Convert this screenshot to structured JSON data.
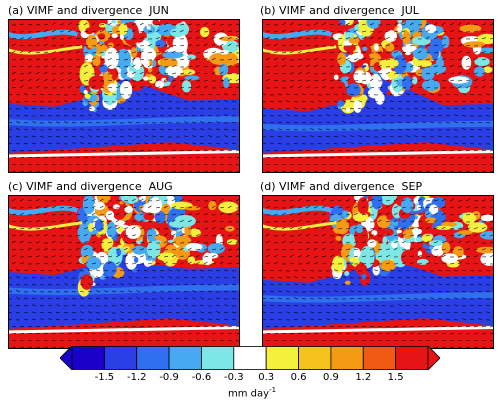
{
  "panels": [
    {
      "title": "(a) VIMF and divergence  JUN"
    },
    {
      "title": "(b) VIMF and divergence  JUL"
    },
    {
      "title": "(c) VIMF and divergence  AUG"
    },
    {
      "title": "(d) VIMF and divergence  SEP"
    }
  ],
  "colorbar": {
    "colors": [
      "#1a00c8",
      "#2a3ee6",
      "#2f6ff0",
      "#46a9f2",
      "#7de6e6",
      "#ffffff",
      "#f5f03c",
      "#f5c21e",
      "#f59a14",
      "#f05a14",
      "#e61414"
    ],
    "tick_labels": [
      "-1.5",
      "-1.2",
      "-0.9",
      "-0.6",
      "-0.3",
      "0.3",
      "0.6",
      "0.9",
      "1.2",
      "1.5"
    ],
    "units": "mm day",
    "units_sup": "-1"
  },
  "chart_data": {
    "type": "heatmap",
    "titles": [
      "(a) VIMF and divergence  JUN",
      "(b) VIMF and divergence  JUL",
      "(c) VIMF and divergence  AUG",
      "(d) VIMF and divergence  SEP"
    ],
    "colorbar_levels": [
      -1.5,
      -1.2,
      -0.9,
      -0.6,
      -0.3,
      0.3,
      0.6,
      0.9,
      1.2,
      1.5
    ],
    "colorbar_units": "mm day-1"
  }
}
